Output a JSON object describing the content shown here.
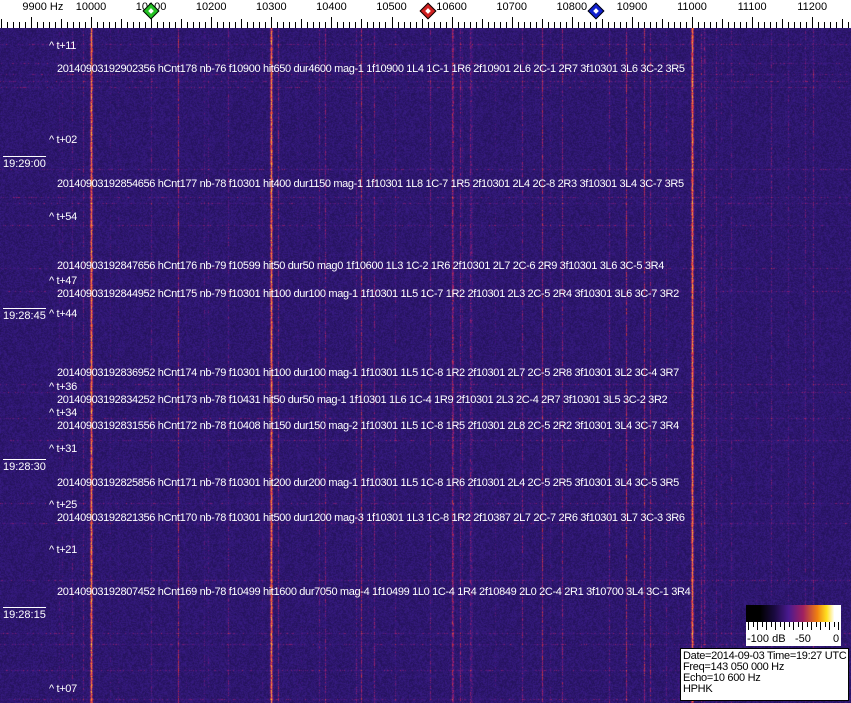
{
  "axis": {
    "unit_label": "9900 Hz",
    "labels": [
      {
        "freq": 9900,
        "text": "9900 Hz"
      },
      {
        "freq": 10000,
        "text": "10000"
      },
      {
        "freq": 10100,
        "text": "10100"
      },
      {
        "freq": 10200,
        "text": "10200"
      },
      {
        "freq": 10300,
        "text": "10300"
      },
      {
        "freq": 10400,
        "text": "10400"
      },
      {
        "freq": 10500,
        "text": "10500"
      },
      {
        "freq": 10600,
        "text": "10600"
      },
      {
        "freq": 10700,
        "text": "10700"
      },
      {
        "freq": 10800,
        "text": "10800"
      },
      {
        "freq": 10900,
        "text": "10900"
      },
      {
        "freq": 11000,
        "text": "11000"
      },
      {
        "freq": 11100,
        "text": "11100"
      },
      {
        "freq": 11200,
        "text": "11200"
      }
    ],
    "range_hz": [
      9850,
      11270
    ],
    "markers": [
      {
        "name": "green-marker",
        "freq": 10100,
        "color": "#22c022"
      },
      {
        "name": "red-marker",
        "freq": 10560,
        "color": "#d02020"
      },
      {
        "name": "blue-marker",
        "freq": 10840,
        "color": "#1020d0"
      }
    ]
  },
  "spectrogram": {
    "colors": {
      "background": "#241868",
      "carrier": "#e07a30",
      "line": "#8a2a8a"
    },
    "carrier_lines_hz": [
      10000,
      10300,
      11000
    ],
    "time_labels": [
      "19:29:00",
      "19:28:45",
      "19:28:30",
      "19:28:15"
    ],
    "t_marks": [
      "^ t+11",
      "^ t+02",
      "^ t+54",
      "^ t+47",
      "^ t+44",
      "^ t+36",
      "^ t+34",
      "^ t+31",
      "^ t+25",
      "^ t+21",
      "^ t+07"
    ],
    "events": [
      "20140903192902356 hCnt178 nb-76 f10900 hit650 dur4600 mag-1 1f10900 1L4 1C-1 1R6 2f10901 2L6 2C-1 2R7 3f10301 3L6 3C-2 3R5",
      "20140903192854656 hCnt177 nb-78 f10301 hit400 dur1150 mag-1 1f10301 1L8 1C-7 1R5 2f10301 2L4 2C-8 2R3 3f10301 3L4 3C-7 3R5",
      "20140903192847656 hCnt176 nb-79 f10599 hit50 dur50 mag0 1f10600 1L3 1C-2 1R6 2f10301 2L7 2C-6 2R9 3f10301 3L6 3C-5 3R4",
      "20140903192844952 hCnt175 nb-79 f10301 hit100 dur100 mag-1 1f10301 1L5 1C-7 1R2 2f10301 2L3 2C-5 2R4 3f10301 3L6 3C-7 3R2",
      "20140903192836952 hCnt174 nb-79 f10301 hit100 dur100 mag-1 1f10301 1L5 1C-8 1R2 2f10301 2L7 2C-5 2R8 3f10301 3L2 3C-4 3R7",
      "20140903192834252 hCnt173 nb-78 f10431 hit50 dur50 mag-1 1f10301 1L6 1C-4 1R9 2f10301 2L3 2C-4 2R7 3f10301 3L5 3C-2 3R2",
      "20140903192831556 hCnt172 nb-78 f10408 hit150 dur150 mag-2 1f10301 1L5 1C-8 1R5 2f10301 2L8 2C-5 2R2 3f10301 3L4 3C-7 3R4",
      "20140903192825856 hCnt171 nb-78 f10301 hit200 dur200 mag-1 1f10301 1L5 1C-8 1R6 2f10301 2L4 2C-5 2R5 3f10301 3L4 3C-5 3R5",
      "20140903192821356 hCnt170 nb-78 f10301 hit500 dur1200 mag-3 1f10301 1L3 1C-8 1R2 2f10387 2L7 2C-7 2R6 3f10301 3L7 3C-3 3R6",
      "20140903192807452 hCnt169 nb-78 f10499 hit1600 dur7050 mag-4 1f10499 1L0 1C-4 1R4 2f10849 2L0 2C-4 2R1 3f10700 3L4 3C-1 3R4"
    ]
  },
  "colorbar": {
    "labels": [
      "-100 dB",
      "-50",
      "0"
    ],
    "range_db": [
      -100,
      0
    ]
  },
  "info": {
    "date_time": "Date=2014-09-03 Time=19:27 UTC",
    "freq": "Freq=143 050 000 Hz",
    "echo": "Echo=10 600 Hz",
    "station": "HPHK"
  }
}
